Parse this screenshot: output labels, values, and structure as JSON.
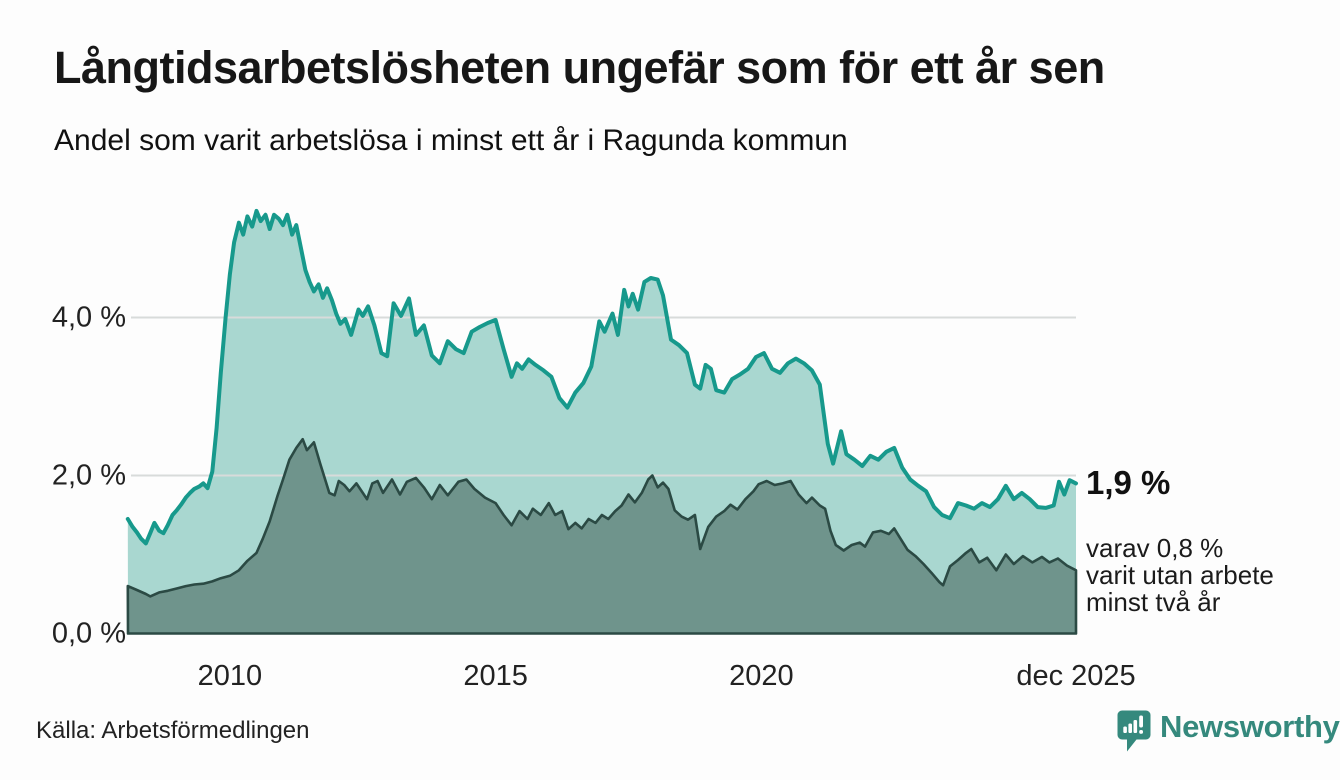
{
  "header": {
    "title": "Långtidsarbetslösheten ungefär som för ett år sen",
    "subtitle": "Andel som varit arbetslösa i minst ett år i Ragunda kommun"
  },
  "footer": {
    "source": "Källa: Arbetsförmedlingen",
    "brand": "Newsworthy",
    "brand_color": "#35897d"
  },
  "colors": {
    "line_1yr": "#17998c",
    "fill_1yr": "#a9d7d0",
    "line_2yr": "#2b4a44",
    "fill_2yr": "#6f948c",
    "gridline": "#d8dbda",
    "text": "#1a1a1a"
  },
  "chart_data": {
    "type": "area",
    "title": "Långtidsarbetslösheten ungefär som för ett år sen",
    "subtitle": "Andel som varit arbetslösa i minst ett år i Ragunda kommun",
    "unit": "%",
    "grid": true,
    "legend": "none",
    "x_range": [
      2008.083,
      2025.92
    ],
    "ylim": [
      0,
      5.6
    ],
    "y_axis": {
      "ticks": [
        {
          "label": "0,0 %",
          "value": 0
        },
        {
          "label": "2,0 %",
          "value": 2
        },
        {
          "label": "4,0 %",
          "value": 4
        }
      ]
    },
    "x_axis": {
      "ticks": [
        {
          "label": "2010",
          "year": 2010
        },
        {
          "label": "2015",
          "year": 2015
        },
        {
          "label": "2020",
          "year": 2020
        },
        {
          "label": "dec 2025",
          "year": 2025.92
        }
      ]
    },
    "annotations": {
      "latest_value": "1,9 %",
      "latest_value_pct": 1.9,
      "lines": [
        "varav 0,8 %",
        "varit utan arbete",
        "minst två år"
      ],
      "sub_value_pct": 0.8
    },
    "series": [
      {
        "name": "Andel arbetslösa minst ett år",
        "style": "area",
        "points": [
          [
            2008.08,
            1.45
          ],
          [
            2008.17,
            1.35
          ],
          [
            2008.25,
            1.28
          ],
          [
            2008.33,
            1.2
          ],
          [
            2008.42,
            1.14
          ],
          [
            2008.5,
            1.27
          ],
          [
            2008.58,
            1.4
          ],
          [
            2008.67,
            1.3
          ],
          [
            2008.75,
            1.27
          ],
          [
            2008.83,
            1.37
          ],
          [
            2008.92,
            1.5
          ],
          [
            2009.0,
            1.56
          ],
          [
            2009.08,
            1.63
          ],
          [
            2009.17,
            1.72
          ],
          [
            2009.25,
            1.78
          ],
          [
            2009.33,
            1.83
          ],
          [
            2009.42,
            1.86
          ],
          [
            2009.5,
            1.9
          ],
          [
            2009.58,
            1.84
          ],
          [
            2009.67,
            2.05
          ],
          [
            2009.75,
            2.6
          ],
          [
            2009.83,
            3.3
          ],
          [
            2009.92,
            4.0
          ],
          [
            2010.0,
            4.55
          ],
          [
            2010.08,
            4.95
          ],
          [
            2010.17,
            5.2
          ],
          [
            2010.25,
            5.05
          ],
          [
            2010.33,
            5.28
          ],
          [
            2010.42,
            5.15
          ],
          [
            2010.5,
            5.35
          ],
          [
            2010.58,
            5.22
          ],
          [
            2010.67,
            5.3
          ],
          [
            2010.75,
            5.12
          ],
          [
            2010.83,
            5.3
          ],
          [
            2010.92,
            5.25
          ],
          [
            2011.0,
            5.17
          ],
          [
            2011.08,
            5.3
          ],
          [
            2011.17,
            5.05
          ],
          [
            2011.25,
            5.17
          ],
          [
            2011.33,
            4.9
          ],
          [
            2011.42,
            4.6
          ],
          [
            2011.5,
            4.45
          ],
          [
            2011.58,
            4.33
          ],
          [
            2011.67,
            4.42
          ],
          [
            2011.75,
            4.25
          ],
          [
            2011.83,
            4.37
          ],
          [
            2011.92,
            4.22
          ],
          [
            2012.0,
            4.05
          ],
          [
            2012.08,
            3.92
          ],
          [
            2012.17,
            3.98
          ],
          [
            2012.28,
            3.78
          ],
          [
            2012.42,
            4.1
          ],
          [
            2012.5,
            4.02
          ],
          [
            2012.6,
            4.14
          ],
          [
            2012.72,
            3.9
          ],
          [
            2012.85,
            3.55
          ],
          [
            2012.96,
            3.51
          ],
          [
            2013.08,
            4.18
          ],
          [
            2013.22,
            4.02
          ],
          [
            2013.37,
            4.24
          ],
          [
            2013.5,
            3.78
          ],
          [
            2013.65,
            3.9
          ],
          [
            2013.8,
            3.52
          ],
          [
            2013.95,
            3.42
          ],
          [
            2014.1,
            3.7
          ],
          [
            2014.25,
            3.6
          ],
          [
            2014.4,
            3.55
          ],
          [
            2014.55,
            3.82
          ],
          [
            2014.7,
            3.88
          ],
          [
            2014.85,
            3.93
          ],
          [
            2015.0,
            3.97
          ],
          [
            2015.15,
            3.6
          ],
          [
            2015.3,
            3.25
          ],
          [
            2015.4,
            3.42
          ],
          [
            2015.5,
            3.35
          ],
          [
            2015.62,
            3.47
          ],
          [
            2015.75,
            3.4
          ],
          [
            2015.9,
            3.33
          ],
          [
            2016.05,
            3.25
          ],
          [
            2016.2,
            2.98
          ],
          [
            2016.35,
            2.86
          ],
          [
            2016.5,
            3.05
          ],
          [
            2016.65,
            3.17
          ],
          [
            2016.8,
            3.38
          ],
          [
            2016.95,
            3.95
          ],
          [
            2017.05,
            3.82
          ],
          [
            2017.2,
            4.05
          ],
          [
            2017.3,
            3.78
          ],
          [
            2017.42,
            4.35
          ],
          [
            2017.5,
            4.14
          ],
          [
            2017.58,
            4.3
          ],
          [
            2017.68,
            4.1
          ],
          [
            2017.8,
            4.45
          ],
          [
            2017.92,
            4.5
          ],
          [
            2018.05,
            4.48
          ],
          [
            2018.15,
            4.28
          ],
          [
            2018.3,
            3.72
          ],
          [
            2018.45,
            3.65
          ],
          [
            2018.6,
            3.55
          ],
          [
            2018.75,
            3.15
          ],
          [
            2018.85,
            3.1
          ],
          [
            2018.95,
            3.4
          ],
          [
            2019.05,
            3.35
          ],
          [
            2019.15,
            3.08
          ],
          [
            2019.3,
            3.05
          ],
          [
            2019.45,
            3.22
          ],
          [
            2019.6,
            3.28
          ],
          [
            2019.75,
            3.35
          ],
          [
            2019.9,
            3.5
          ],
          [
            2020.05,
            3.55
          ],
          [
            2020.2,
            3.35
          ],
          [
            2020.35,
            3.3
          ],
          [
            2020.5,
            3.42
          ],
          [
            2020.65,
            3.48
          ],
          [
            2020.8,
            3.42
          ],
          [
            2020.95,
            3.33
          ],
          [
            2021.1,
            3.15
          ],
          [
            2021.25,
            2.4
          ],
          [
            2021.35,
            2.15
          ],
          [
            2021.5,
            2.56
          ],
          [
            2021.6,
            2.27
          ],
          [
            2021.75,
            2.2
          ],
          [
            2021.9,
            2.12
          ],
          [
            2022.05,
            2.25
          ],
          [
            2022.2,
            2.2
          ],
          [
            2022.35,
            2.3
          ],
          [
            2022.5,
            2.35
          ],
          [
            2022.65,
            2.1
          ],
          [
            2022.8,
            1.95
          ],
          [
            2022.95,
            1.87
          ],
          [
            2023.1,
            1.8
          ],
          [
            2023.25,
            1.6
          ],
          [
            2023.4,
            1.5
          ],
          [
            2023.55,
            1.46
          ],
          [
            2023.7,
            1.65
          ],
          [
            2023.85,
            1.62
          ],
          [
            2024.0,
            1.58
          ],
          [
            2024.15,
            1.65
          ],
          [
            2024.3,
            1.6
          ],
          [
            2024.45,
            1.7
          ],
          [
            2024.6,
            1.87
          ],
          [
            2024.75,
            1.7
          ],
          [
            2024.9,
            1.78
          ],
          [
            2025.05,
            1.7
          ],
          [
            2025.2,
            1.6
          ],
          [
            2025.35,
            1.59
          ],
          [
            2025.5,
            1.62
          ],
          [
            2025.6,
            1.92
          ],
          [
            2025.7,
            1.76
          ],
          [
            2025.8,
            1.94
          ],
          [
            2025.92,
            1.9
          ]
        ]
      },
      {
        "name": "varav arbetslösa minst två år",
        "style": "area",
        "points": [
          [
            2008.08,
            0.6
          ],
          [
            2008.25,
            0.55
          ],
          [
            2008.42,
            0.5
          ],
          [
            2008.5,
            0.47
          ],
          [
            2008.67,
            0.52
          ],
          [
            2008.83,
            0.54
          ],
          [
            2009.0,
            0.57
          ],
          [
            2009.17,
            0.6
          ],
          [
            2009.33,
            0.62
          ],
          [
            2009.5,
            0.63
          ],
          [
            2009.67,
            0.66
          ],
          [
            2009.83,
            0.7
          ],
          [
            2010.0,
            0.73
          ],
          [
            2010.17,
            0.8
          ],
          [
            2010.33,
            0.92
          ],
          [
            2010.5,
            1.02
          ],
          [
            2010.62,
            1.2
          ],
          [
            2010.75,
            1.42
          ],
          [
            2010.9,
            1.75
          ],
          [
            2011.0,
            1.95
          ],
          [
            2011.12,
            2.2
          ],
          [
            2011.25,
            2.35
          ],
          [
            2011.37,
            2.46
          ],
          [
            2011.45,
            2.32
          ],
          [
            2011.58,
            2.42
          ],
          [
            2011.7,
            2.15
          ],
          [
            2011.87,
            1.78
          ],
          [
            2011.97,
            1.75
          ],
          [
            2012.05,
            1.93
          ],
          [
            2012.15,
            1.88
          ],
          [
            2012.25,
            1.8
          ],
          [
            2012.38,
            1.9
          ],
          [
            2012.5,
            1.78
          ],
          [
            2012.58,
            1.7
          ],
          [
            2012.68,
            1.9
          ],
          [
            2012.78,
            1.93
          ],
          [
            2012.88,
            1.78
          ],
          [
            2013.05,
            1.95
          ],
          [
            2013.2,
            1.76
          ],
          [
            2013.33,
            1.92
          ],
          [
            2013.5,
            1.97
          ],
          [
            2013.65,
            1.85
          ],
          [
            2013.8,
            1.7
          ],
          [
            2013.95,
            1.88
          ],
          [
            2014.1,
            1.75
          ],
          [
            2014.3,
            1.92
          ],
          [
            2014.45,
            1.95
          ],
          [
            2014.6,
            1.83
          ],
          [
            2014.8,
            1.72
          ],
          [
            2015.0,
            1.65
          ],
          [
            2015.15,
            1.5
          ],
          [
            2015.3,
            1.37
          ],
          [
            2015.45,
            1.55
          ],
          [
            2015.6,
            1.45
          ],
          [
            2015.7,
            1.58
          ],
          [
            2015.85,
            1.5
          ],
          [
            2016.0,
            1.65
          ],
          [
            2016.12,
            1.5
          ],
          [
            2016.25,
            1.55
          ],
          [
            2016.37,
            1.32
          ],
          [
            2016.5,
            1.4
          ],
          [
            2016.62,
            1.33
          ],
          [
            2016.75,
            1.45
          ],
          [
            2016.88,
            1.4
          ],
          [
            2017.0,
            1.5
          ],
          [
            2017.12,
            1.45
          ],
          [
            2017.25,
            1.55
          ],
          [
            2017.37,
            1.62
          ],
          [
            2017.5,
            1.76
          ],
          [
            2017.62,
            1.66
          ],
          [
            2017.75,
            1.78
          ],
          [
            2017.87,
            1.95
          ],
          [
            2017.95,
            2.0
          ],
          [
            2018.05,
            1.85
          ],
          [
            2018.15,
            1.91
          ],
          [
            2018.25,
            1.83
          ],
          [
            2018.37,
            1.56
          ],
          [
            2018.5,
            1.48
          ],
          [
            2018.62,
            1.44
          ],
          [
            2018.75,
            1.5
          ],
          [
            2018.85,
            1.07
          ],
          [
            2019.0,
            1.35
          ],
          [
            2019.15,
            1.48
          ],
          [
            2019.3,
            1.55
          ],
          [
            2019.42,
            1.63
          ],
          [
            2019.55,
            1.57
          ],
          [
            2019.7,
            1.7
          ],
          [
            2019.85,
            1.8
          ],
          [
            2019.95,
            1.89
          ],
          [
            2020.1,
            1.93
          ],
          [
            2020.25,
            1.88
          ],
          [
            2020.4,
            1.9
          ],
          [
            2020.55,
            1.93
          ],
          [
            2020.7,
            1.76
          ],
          [
            2020.85,
            1.65
          ],
          [
            2020.95,
            1.72
          ],
          [
            2021.1,
            1.62
          ],
          [
            2021.2,
            1.58
          ],
          [
            2021.3,
            1.3
          ],
          [
            2021.4,
            1.12
          ],
          [
            2021.55,
            1.05
          ],
          [
            2021.7,
            1.12
          ],
          [
            2021.85,
            1.15
          ],
          [
            2021.95,
            1.1
          ],
          [
            2022.1,
            1.28
          ],
          [
            2022.25,
            1.3
          ],
          [
            2022.4,
            1.26
          ],
          [
            2022.5,
            1.33
          ],
          [
            2022.6,
            1.22
          ],
          [
            2022.75,
            1.06
          ],
          [
            2022.9,
            0.98
          ],
          [
            2023.05,
            0.88
          ],
          [
            2023.2,
            0.77
          ],
          [
            2023.35,
            0.65
          ],
          [
            2023.42,
            0.61
          ],
          [
            2023.55,
            0.85
          ],
          [
            2023.7,
            0.93
          ],
          [
            2023.85,
            1.02
          ],
          [
            2023.95,
            1.07
          ],
          [
            2024.1,
            0.9
          ],
          [
            2024.25,
            0.96
          ],
          [
            2024.42,
            0.8
          ],
          [
            2024.6,
            1.0
          ],
          [
            2024.75,
            0.88
          ],
          [
            2024.92,
            0.98
          ],
          [
            2025.1,
            0.9
          ],
          [
            2025.28,
            0.97
          ],
          [
            2025.42,
            0.9
          ],
          [
            2025.58,
            0.95
          ],
          [
            2025.75,
            0.86
          ],
          [
            2025.92,
            0.8
          ]
        ]
      }
    ]
  }
}
